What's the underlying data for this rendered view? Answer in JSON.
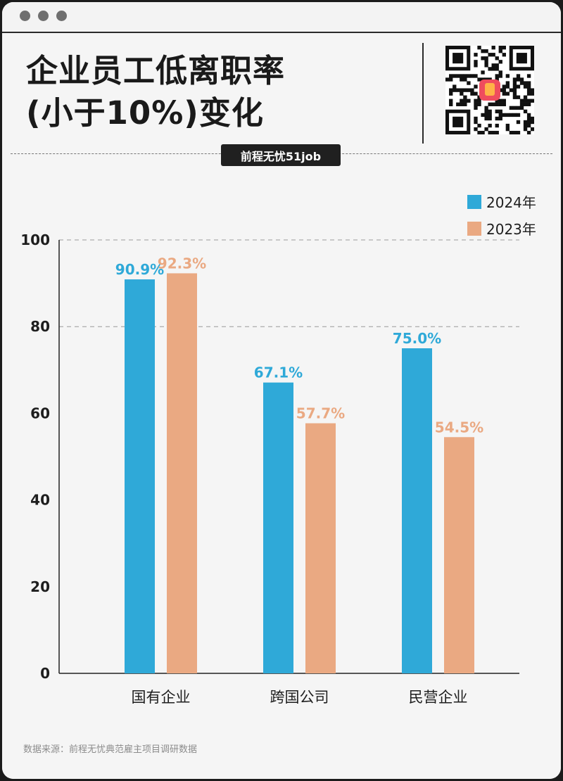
{
  "title": {
    "line1": "企业员工低离职率",
    "line2": "(小于10%)变化"
  },
  "source_badge": "前程无忧51job",
  "footnote": "数据来源：前程无忧典范雇主项目调研数据",
  "colors": {
    "series_2024": "#2fa9d8",
    "series_2023": "#eaa982",
    "axis": "#222222"
  },
  "chart_data": {
    "type": "bar",
    "categories": [
      "国有企业",
      "跨国公司",
      "民营企业"
    ],
    "series": [
      {
        "name": "2024年",
        "values": [
          90.9,
          67.1,
          75.0
        ],
        "labels": [
          "90.9%",
          "67.1%",
          "75.0%"
        ]
      },
      {
        "name": "2023年",
        "values": [
          92.3,
          57.7,
          54.5
        ],
        "labels": [
          "92.3%",
          "57.7%",
          "54.5%"
        ]
      }
    ],
    "yticks": [
      0,
      20,
      40,
      60,
      80,
      100
    ],
    "ylim": [
      0,
      100
    ],
    "gridlines": [
      80,
      100
    ],
    "legend": "top-right"
  }
}
